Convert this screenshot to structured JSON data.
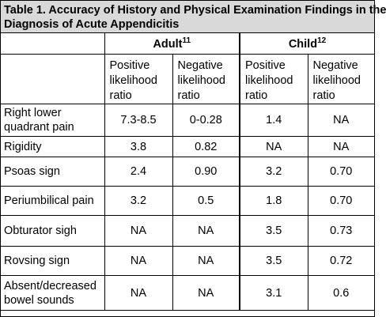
{
  "title": {
    "line1": "Table 1. Accuracy of History and Physical Examination Findings in the",
    "line2": "Diagnosis of Acute Appendicitis"
  },
  "groups": [
    {
      "label": "Adult",
      "ref": "11"
    },
    {
      "label": "Child",
      "ref": "12"
    }
  ],
  "subheaders": [
    "Positive likelihood ratio",
    "Negative likelihood ratio",
    "Positive likelihood ratio",
    "Negative likelihood ratio"
  ],
  "rows": [
    {
      "label": "Right lower quadrant pain",
      "values": [
        "7.3-8.5",
        "0-0.28",
        "1.4",
        "NA"
      ]
    },
    {
      "label": "Rigidity",
      "values": [
        "3.8",
        "0.82",
        "NA",
        "NA"
      ]
    },
    {
      "label": "Psoas sign",
      "values": [
        "2.4",
        "0.90",
        "3.2",
        "0.70"
      ]
    },
    {
      "label": "Periumbilical pain",
      "values": [
        "3.2",
        "0.5",
        "1.8",
        "0.70"
      ]
    },
    {
      "label": "Obturator sigh",
      "values": [
        "NA",
        "NA",
        "3.5",
        "0.73"
      ]
    },
    {
      "label": "Rovsing sign",
      "values": [
        "NA",
        "NA",
        "3.5",
        "0.72"
      ]
    },
    {
      "label": "Absent/decreased bowel sounds",
      "values": [
        "NA",
        "NA",
        "3.1",
        "0.6"
      ]
    }
  ]
}
